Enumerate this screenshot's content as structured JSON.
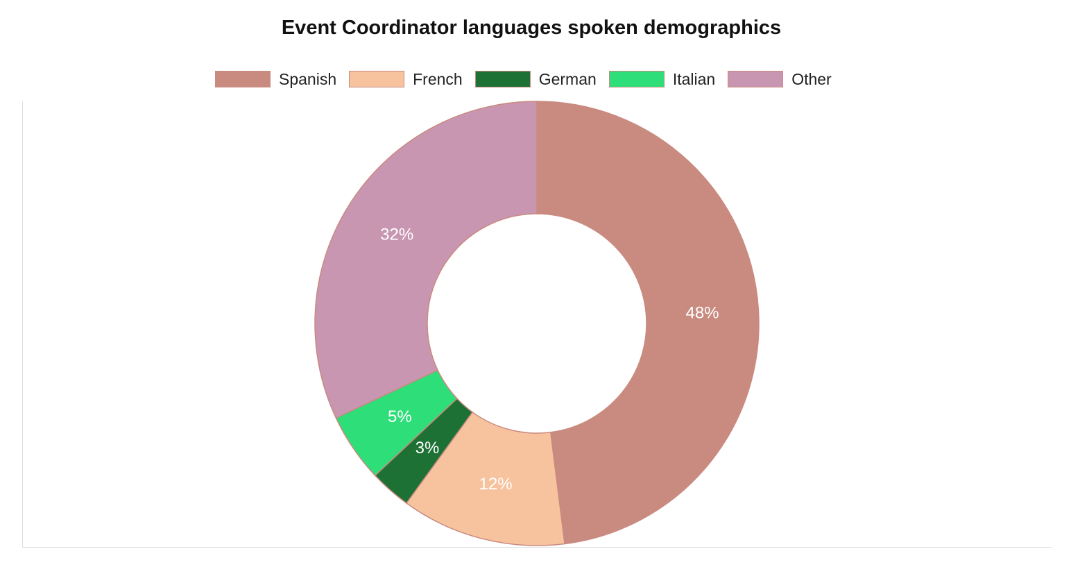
{
  "chart_data": {
    "type": "pie",
    "variant": "doughnut",
    "title": "Event Coordinator languages spoken demographics",
    "categories": [
      "Spanish",
      "French",
      "German",
      "Italian",
      "Other"
    ],
    "values": [
      48,
      12,
      3,
      5,
      32
    ],
    "labels": [
      "48%",
      "12%",
      "3%",
      "5%",
      "32%"
    ],
    "colors": [
      "#c98a80",
      "#f7c39e",
      "#1e7135",
      "#2ede78",
      "#c896b0"
    ],
    "border_color": "#c98a80",
    "legend_position": "top-center",
    "start_angle": "top",
    "direction": "clockwise"
  }
}
